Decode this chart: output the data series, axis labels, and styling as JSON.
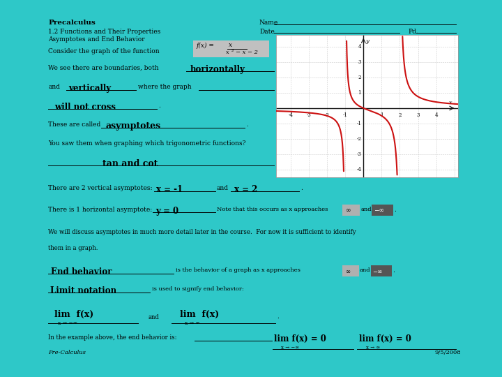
{
  "bg_color": "#2ec8c8",
  "paper_color": "#f8f4ec",
  "title_text": "Precalculus",
  "subtitle1": "1.2 Functions and Their Properties",
  "subtitle2": "Asymptotes and End Behavior",
  "name_label": "Name",
  "date_label": "Date",
  "pd_label": "Pd.",
  "consider_text": "Consider the graph of the function",
  "fill1": "horizontally",
  "fill2": "vertically",
  "fill3": "will not cross",
  "fill4": "asymptotes",
  "fill5": "tan and cot",
  "fill6": "x = -1",
  "fill7": "x = 2",
  "fill8": "y = 0",
  "fill9": "End behavior",
  "fill10": "Limit notation",
  "lim1_main": "lim  f(x)",
  "lim1_sub": "x → −∞",
  "lim2_main": "lim  f(x)",
  "lim2_sub": "x → ∞",
  "lim3_main": "lim f(x) = 0",
  "lim3_sub": "x → −∞",
  "lim4_main": "lim f(x) = 0",
  "lim4_sub": "x → ∞",
  "footer_left": "Pre-Calculus",
  "footer_right": "9/5/2008",
  "graph_xlim": [
    -4.8,
    5.2
  ],
  "graph_ylim": [
    -4.5,
    4.8
  ],
  "curve_color": "#cc1111",
  "grid_color": "#cccccc",
  "axis_color": "#111111",
  "graph_bg": "#ffffff",
  "inf_box_color": "#aaaaaa",
  "neg_inf_box_color": "#555555"
}
